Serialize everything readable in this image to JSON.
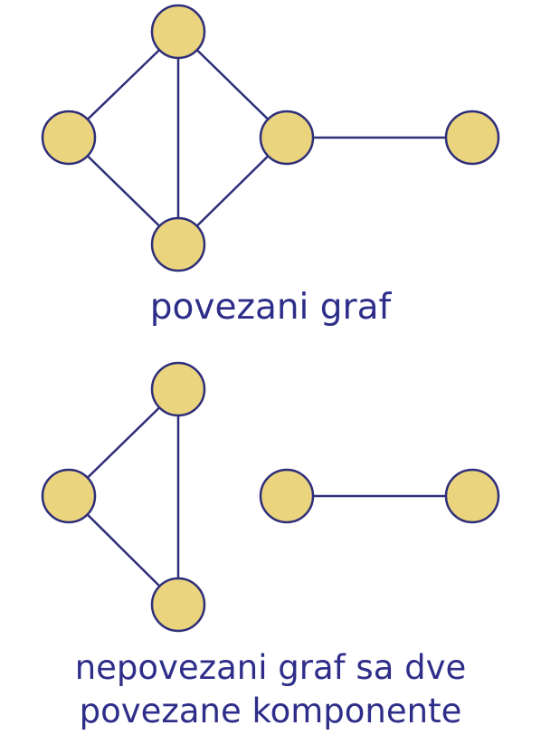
{
  "diagram": {
    "colors": {
      "node_fill": "#ebd47e",
      "node_stroke": "#2e2e7a",
      "edge": "#2e2e7a",
      "text": "#2e2e8a"
    },
    "graph1": {
      "caption": "povezani graf",
      "nodes": [
        "top",
        "left",
        "middle",
        "bottom",
        "right"
      ],
      "edges": [
        [
          "top",
          "left"
        ],
        [
          "top",
          "middle"
        ],
        [
          "top",
          "bottom"
        ],
        [
          "left",
          "bottom"
        ],
        [
          "middle",
          "bottom"
        ],
        [
          "middle",
          "right"
        ]
      ]
    },
    "graph2": {
      "caption_line1": "nepovezani graf sa dve",
      "caption_line2": "povezane komponente",
      "nodes": [
        "top",
        "left",
        "bottom",
        "middle",
        "right"
      ],
      "edges": [
        [
          "top",
          "left"
        ],
        [
          "top",
          "bottom"
        ],
        [
          "left",
          "bottom"
        ],
        [
          "middle",
          "right"
        ]
      ]
    }
  }
}
